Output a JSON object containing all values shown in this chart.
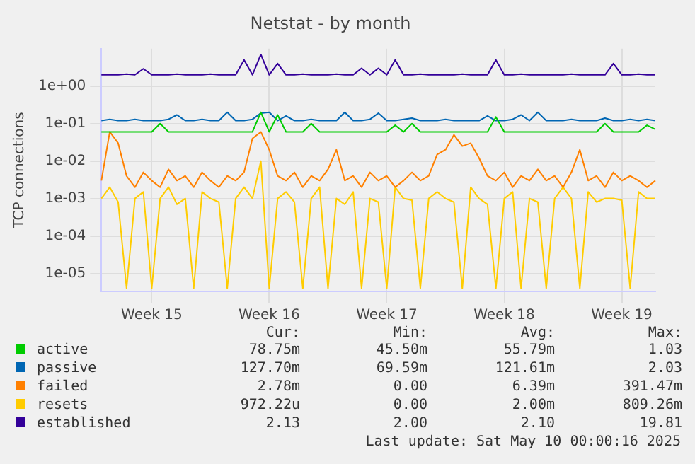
{
  "chart_data": {
    "type": "line",
    "title": "Netstat - by month",
    "ylabel": "TCP connections",
    "log": "y",
    "grid": true,
    "legend": "bottom",
    "marker": "none",
    "line_style": "solid",
    "categories": [
      null,
      null,
      null,
      null,
      null,
      null,
      "Week 15",
      null,
      null,
      null,
      null,
      null,
      null,
      null,
      null,
      null,
      null,
      null,
      null,
      null,
      "Week 16",
      null,
      null,
      null,
      null,
      null,
      null,
      null,
      null,
      null,
      null,
      null,
      null,
      null,
      "Week 17",
      null,
      null,
      null,
      null,
      null,
      null,
      null,
      null,
      null,
      null,
      null,
      null,
      null,
      "Week 18",
      null,
      null,
      null,
      null,
      null,
      null,
      null,
      null,
      null,
      null,
      null,
      null,
      null,
      "Week 19",
      null,
      null,
      null,
      null
    ],
    "ylim": [
      3.3e-06,
      10
    ],
    "yticks": [
      {
        "value": 1e-05,
        "label": "1e-05"
      },
      {
        "value": 0.0001,
        "label": "1e-04"
      },
      {
        "value": 0.001,
        "label": "1e-03"
      },
      {
        "value": 0.01,
        "label": "1e-02"
      },
      {
        "value": 0.1,
        "label": "1e-01"
      },
      {
        "value": 1,
        "label": "1e+00"
      }
    ],
    "series": [
      {
        "name": "active",
        "color": "#00cc00",
        "values": [
          0.06,
          0.06,
          0.06,
          0.06,
          0.06,
          0.06,
          0.06,
          0.1,
          0.06,
          0.06,
          0.06,
          0.06,
          0.06,
          0.06,
          0.06,
          0.06,
          0.06,
          0.06,
          0.06,
          0.2,
          0.06,
          0.17,
          0.06,
          0.06,
          0.06,
          0.1,
          0.06,
          0.06,
          0.06,
          0.06,
          0.06,
          0.06,
          0.06,
          0.06,
          0.06,
          0.09,
          0.06,
          0.1,
          0.06,
          0.06,
          0.06,
          0.06,
          0.06,
          0.06,
          0.06,
          0.06,
          0.06,
          0.15,
          0.06,
          0.06,
          0.06,
          0.06,
          0.06,
          0.06,
          0.06,
          0.06,
          0.06,
          0.06,
          0.06,
          0.06,
          0.1,
          0.06,
          0.06,
          0.06,
          0.06,
          0.09,
          0.07
        ]
      },
      {
        "name": "passive",
        "color": "#0066b3",
        "values": [
          0.12,
          0.13,
          0.12,
          0.12,
          0.13,
          0.12,
          0.12,
          0.12,
          0.13,
          0.17,
          0.12,
          0.12,
          0.13,
          0.12,
          0.12,
          0.2,
          0.12,
          0.12,
          0.13,
          0.19,
          0.2,
          0.12,
          0.16,
          0.12,
          0.12,
          0.13,
          0.12,
          0.12,
          0.12,
          0.2,
          0.12,
          0.12,
          0.13,
          0.19,
          0.12,
          0.12,
          0.13,
          0.14,
          0.12,
          0.12,
          0.12,
          0.13,
          0.12,
          0.12,
          0.12,
          0.12,
          0.16,
          0.12,
          0.12,
          0.13,
          0.17,
          0.12,
          0.2,
          0.12,
          0.12,
          0.12,
          0.13,
          0.12,
          0.12,
          0.12,
          0.14,
          0.12,
          0.12,
          0.13,
          0.12,
          0.13,
          0.12
        ]
      },
      {
        "name": "failed",
        "color": "#ff8000",
        "values": [
          0.003,
          0.06,
          0.03,
          0.004,
          0.002,
          0.005,
          0.003,
          0.002,
          0.006,
          0.003,
          0.004,
          0.002,
          0.005,
          0.003,
          0.002,
          0.004,
          0.003,
          0.005,
          0.04,
          0.06,
          0.02,
          0.004,
          0.003,
          0.005,
          0.002,
          0.004,
          0.003,
          0.006,
          0.02,
          0.003,
          0.004,
          0.002,
          0.005,
          0.003,
          0.004,
          0.002,
          0.003,
          0.005,
          0.003,
          0.004,
          0.015,
          0.02,
          0.05,
          0.025,
          0.03,
          0.012,
          0.004,
          0.003,
          0.005,
          0.002,
          0.004,
          0.003,
          0.006,
          0.003,
          0.004,
          0.002,
          0.005,
          0.02,
          0.003,
          0.004,
          0.002,
          0.005,
          0.003,
          0.004,
          0.003,
          0.002,
          0.003
        ]
      },
      {
        "name": "resets",
        "color": "#ffcc00",
        "values": [
          0.001,
          0.002,
          0.0008,
          4e-06,
          0.001,
          0.0015,
          4e-06,
          0.001,
          0.002,
          0.0007,
          0.001,
          4e-06,
          0.0015,
          0.001,
          0.0008,
          4e-06,
          0.001,
          0.002,
          0.001,
          0.01,
          4e-06,
          0.001,
          0.0015,
          0.0008,
          4e-06,
          0.001,
          0.002,
          4e-06,
          0.001,
          0.0007,
          0.0015,
          4e-06,
          0.001,
          0.0008,
          4e-06,
          0.002,
          0.001,
          0.0009,
          4e-06,
          0.001,
          0.0015,
          0.001,
          0.0008,
          4e-06,
          0.002,
          0.001,
          0.0007,
          4e-06,
          0.001,
          0.0015,
          4e-06,
          0.001,
          0.0008,
          4e-06,
          0.001,
          0.002,
          0.001,
          4e-06,
          0.0015,
          0.0008,
          0.001,
          0.001,
          0.0009,
          4e-06,
          0.0015,
          0.001,
          0.001
        ]
      },
      {
        "name": "established",
        "color": "#330099",
        "values": [
          2,
          2,
          2,
          2.1,
          2,
          2.9,
          2,
          2,
          2,
          2.1,
          2,
          2,
          2,
          2.1,
          2,
          2,
          2,
          5,
          2,
          7,
          2,
          4,
          2,
          2,
          2.1,
          2,
          2,
          2,
          2.1,
          2,
          2,
          3,
          2,
          3,
          2,
          5,
          2,
          2,
          2.1,
          2,
          2,
          2,
          2,
          2.1,
          2,
          2,
          2,
          5,
          2,
          2,
          2.1,
          2,
          2,
          2,
          2,
          2,
          2.1,
          2,
          2,
          2,
          2,
          4,
          2,
          2,
          2.1,
          2,
          2
        ]
      }
    ],
    "annotations": [
      "Cur:",
      "Min:",
      "Avg:",
      "Max:",
      "78.75m",
      "45.50m",
      "55.79m",
      "1.03",
      "127.70m",
      "69.59m",
      "121.61m",
      "2.03",
      "2.78m",
      "0.00",
      "6.39m",
      "391.47m",
      "972.22u",
      "0.00",
      "2.00m",
      "809.26m",
      "2.13",
      "2.00",
      "2.10",
      "19.81",
      "Last update: Sat May 10 00:00:16 2025"
    ]
  }
}
